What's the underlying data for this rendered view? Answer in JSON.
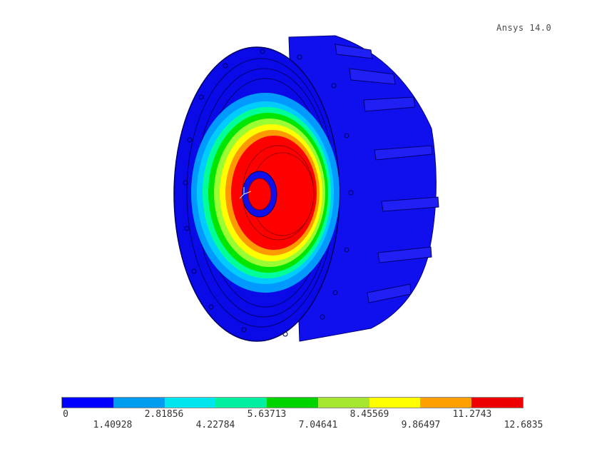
{
  "header": {
    "version_label": "Ansys 14.0"
  },
  "model": {
    "description_name": "wheel-contour-model",
    "contour_colors": [
      "#0000ff",
      "#0099ff",
      "#00ccff",
      "#00ff99",
      "#00e600",
      "#99ff33",
      "#ffff00",
      "#ff9900",
      "#ff0000"
    ]
  },
  "legend": {
    "colors": [
      "#0000ff",
      "#009cf0",
      "#00e6ee",
      "#00efa0",
      "#00d400",
      "#a5e630",
      "#ffff00",
      "#ffa000",
      "#ee0000"
    ],
    "labels_top": [
      "0",
      "2.81856",
      "5.63713",
      "8.45569",
      "11.2743"
    ],
    "labels_bottom": [
      "1.40928",
      "4.22784",
      "7.04641",
      "9.86497",
      "12.6835"
    ]
  }
}
